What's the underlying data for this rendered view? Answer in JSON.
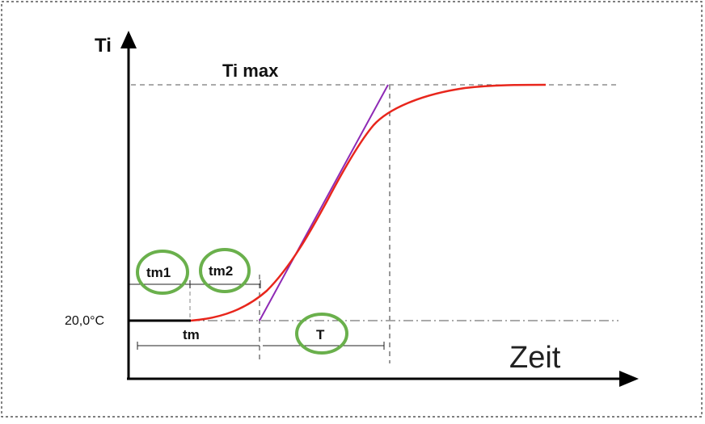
{
  "labels": {
    "y_axis": "Ti",
    "ti_max": "Ti max",
    "start_value": "20,0°C",
    "x_axis": "Zeit",
    "tm1": "tm1",
    "tm2": "tm2",
    "tm": "tm",
    "T": "T"
  },
  "colors": {
    "response_curve": "#e8261c",
    "tangent_line": "#8e2ab5",
    "highlight_circle": "#6ab04c",
    "axis": "#000000",
    "guide_line": "#555555"
  }
}
